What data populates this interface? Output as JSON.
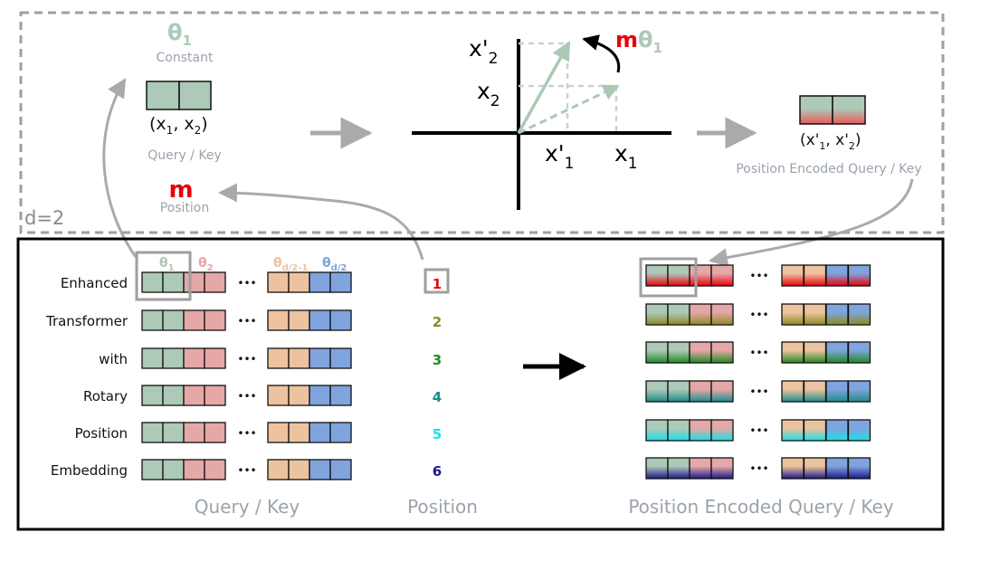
{
  "colors": {
    "theta_green": "#adc9b7",
    "theta_pink": "#e6a7a7",
    "theta_peach": "#edc39f",
    "theta_blue": "#7fa4de",
    "red": "#e8000b",
    "gray_text": "#9aa3ad",
    "frame_gray": "#9f9f9f",
    "arrow_gray": "#aaaaaa",
    "vector_green": "#acc8b4"
  },
  "top": {
    "d_label": "d=2",
    "theta": {
      "base": "θ",
      "sub": "1"
    },
    "constant_label": "Constant",
    "x_pair": {
      "open": "(x",
      "s1": "1",
      "mid": ", x",
      "s2": "2",
      "close": ")"
    },
    "query_key_label": "Query / Key",
    "m_label": "m",
    "position_label": "Position",
    "rotation_label": {
      "m": "m",
      "theta": "θ",
      "sub": "1"
    },
    "axis_labels": {
      "x2_prime": {
        "base": "x'",
        "sub": "2"
      },
      "x2": {
        "base": "x",
        "sub": "2"
      },
      "x1_prime": {
        "base": "x'",
        "sub": "1"
      },
      "x1": {
        "base": "x",
        "sub": "1"
      }
    },
    "out_pair": {
      "open": "(x'",
      "s1": "1",
      "mid": ", x'",
      "s2": "2",
      "close": ")"
    },
    "out_label": "Position Encoded Query / Key"
  },
  "bottom": {
    "theta_headers": [
      {
        "base": "θ",
        "sub": "1",
        "color": "#adc9b7"
      },
      {
        "base": "θ",
        "sub": "2",
        "color": "#e6a7a7"
      },
      {
        "base": "θ",
        "sub": "d/2-1",
        "color": "#edc39f"
      },
      {
        "base": "θ",
        "sub": "d/2",
        "color": "#7fa4de"
      }
    ],
    "words": [
      "Enhanced",
      "Transformer",
      "with",
      "Rotary",
      "Position",
      "Embedding"
    ],
    "positions": [
      {
        "label": "1",
        "color": "#e8000b"
      },
      {
        "label": "2",
        "color": "#8d8a1f"
      },
      {
        "label": "3",
        "color": "#1f8a1f"
      },
      {
        "label": "4",
        "color": "#1c8c8c"
      },
      {
        "label": "5",
        "color": "#19e0e6"
      },
      {
        "label": "6",
        "color": "#1a1a8a"
      }
    ],
    "ellipsis": "•••",
    "query_key_caption": "Query / Key",
    "position_caption": "Position",
    "encoded_caption": "Position Encoded Query / Key"
  }
}
